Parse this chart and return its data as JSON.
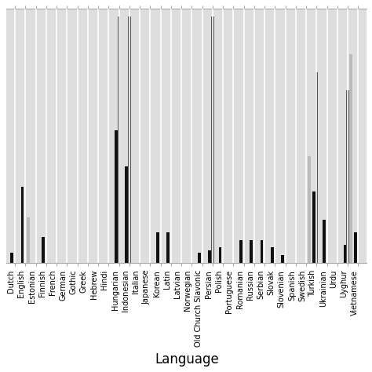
{
  "languages": [
    "Dutch",
    "English",
    "Estonian",
    "Finnish",
    "French",
    "German",
    "Gothic",
    "Greek",
    "Hebrew",
    "Hindi",
    "Hungarian",
    "Indonesian",
    "Italian",
    "Japanese",
    "Korean",
    "Latin",
    "Latvian",
    "Norwegian",
    "Old Church Slavonic",
    "Persian",
    "Polish",
    "Portuguese",
    "Romanian",
    "Russian",
    "Serbian",
    "Slovak",
    "Slovenian",
    "Spanish",
    "Swedish",
    "Turkish",
    "Ukrainian",
    "Urdu",
    "Uyghur",
    "Vietnamese"
  ],
  "series1_black": [
    0.04,
    0.3,
    0.0,
    0.1,
    0.0,
    0.0,
    0.0,
    0.0,
    0.0,
    0.0,
    0.52,
    0.38,
    0.0,
    0.0,
    0.12,
    0.12,
    0.0,
    0.0,
    0.04,
    0.05,
    0.06,
    0.0,
    0.09,
    0.09,
    0.09,
    0.06,
    0.03,
    0.0,
    0.0,
    0.28,
    0.17,
    0.0,
    0.07,
    0.12
  ],
  "series2_darkgray": [
    0.0,
    0.0,
    0.0,
    0.0,
    0.0,
    0.0,
    0.0,
    0.0,
    0.0,
    0.0,
    0.97,
    0.97,
    0.0,
    0.0,
    0.0,
    0.0,
    0.0,
    0.0,
    0.0,
    0.97,
    0.0,
    0.0,
    0.0,
    0.0,
    0.0,
    0.0,
    0.0,
    0.0,
    0.0,
    0.75,
    0.0,
    0.0,
    0.68,
    0.0
  ],
  "series3_lightgray": [
    0.0,
    0.18,
    0.0,
    0.0,
    0.0,
    0.0,
    0.0,
    0.0,
    0.0,
    0.0,
    0.0,
    0.0,
    0.0,
    0.0,
    0.0,
    0.0,
    0.0,
    0.0,
    0.0,
    0.0,
    0.0,
    0.0,
    0.0,
    0.0,
    0.0,
    0.0,
    0.0,
    0.0,
    0.42,
    0.0,
    0.0,
    0.0,
    0.82,
    0.0
  ],
  "colors": [
    "#111111",
    "#555555",
    "#bbbbbb"
  ],
  "bg_color": "#dedede",
  "xlabel": "Language",
  "ylim": [
    0,
    1.0
  ],
  "bar_width": 0.28,
  "xlabel_fontsize": 12
}
